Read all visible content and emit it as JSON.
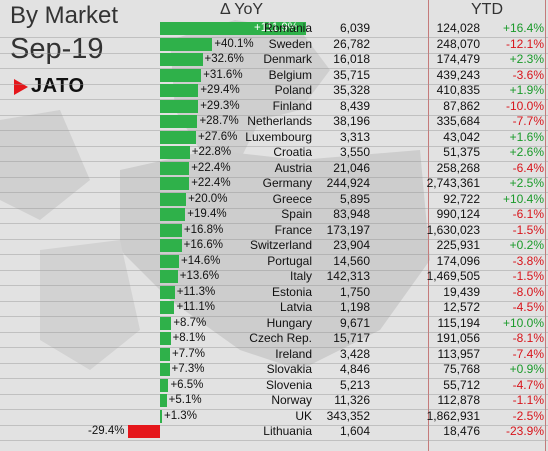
{
  "title": "By Market",
  "subtitle": "Sep-19",
  "logo_text": "JATO",
  "colors": {
    "positive_bar": "#2fb14a",
    "negative_bar": "#e5161b",
    "positive_text": "#1a9a2a",
    "negative_text": "#d8141b"
  },
  "chart_data": {
    "type": "bar",
    "orientation": "horizontal",
    "yoy_header": "Δ YoY",
    "ytd_header": "YTD",
    "categories": [
      "Romania",
      "Sweden",
      "Denmark",
      "Belgium",
      "Poland",
      "Finland",
      "Netherlands",
      "Luxembourg",
      "Croatia",
      "Austria",
      "Germany",
      "Greece",
      "Spain",
      "France",
      "Switzerland",
      "Portugal",
      "Italy",
      "Estonia",
      "Latvia",
      "Hungary",
      "Czech Rep.",
      "Ireland",
      "Slovakia",
      "Slovenia",
      "Norway",
      "UK",
      "Lithuania"
    ],
    "yoy": [
      111.9,
      40.1,
      32.6,
      31.6,
      29.4,
      29.3,
      28.7,
      27.6,
      22.8,
      22.4,
      22.4,
      20.0,
      19.4,
      16.8,
      16.6,
      14.6,
      13.6,
      11.3,
      11.1,
      8.7,
      8.1,
      7.7,
      7.3,
      6.5,
      5.1,
      1.3,
      -29.4
    ],
    "yoy_labels": [
      "+111.9%",
      "+40.1%",
      "+32.6%",
      "+31.6%",
      "+29.4%",
      "+29.3%",
      "+28.7%",
      "+27.6%",
      "+22.8%",
      "+22.4%",
      "+22.4%",
      "+20.0%",
      "+19.4%",
      "+16.8%",
      "+16.6%",
      "+14.6%",
      "+13.6%",
      "+11.3%",
      "+11.1%",
      "+8.7%",
      "+8.1%",
      "+7.7%",
      "+7.3%",
      "+6.5%",
      "+5.1%",
      "+1.3%",
      "-29.4%"
    ],
    "volume": [
      "6,039",
      "26,782",
      "16,018",
      "35,715",
      "35,328",
      "8,439",
      "38,196",
      "3,313",
      "3,550",
      "21,046",
      "244,924",
      "5,895",
      "83,948",
      "173,197",
      "23,904",
      "14,560",
      "142,313",
      "1,750",
      "1,198",
      "9,671",
      "15,717",
      "3,428",
      "4,846",
      "5,213",
      "11,326",
      "343,352",
      "1,604"
    ],
    "ytd_volume": [
      "124,028",
      "248,070",
      "174,479",
      "439,243",
      "410,835",
      "87,862",
      "335,684",
      "43,042",
      "51,375",
      "258,268",
      "2,743,361",
      "92,722",
      "990,124",
      "1,630,023",
      "225,931",
      "174,096",
      "1,469,505",
      "19,439",
      "12,572",
      "115,194",
      "191,056",
      "113,957",
      "75,768",
      "55,712",
      "112,878",
      "1,862,931",
      "18,476"
    ],
    "ytd_change": [
      "+16.4%",
      "-12.1%",
      "+2.3%",
      "-3.6%",
      "+1.9%",
      "-10.0%",
      "-7.7%",
      "+1.6%",
      "+2.6%",
      "-6.4%",
      "+2.5%",
      "+10.4%",
      "-6.1%",
      "-1.5%",
      "+0.2%",
      "-3.8%",
      "-1.5%",
      "-8.0%",
      "-4.5%",
      "+10.0%",
      "-8.1%",
      "-7.4%",
      "+0.9%",
      "-4.7%",
      "-1.1%",
      "-2.5%",
      "-23.9%"
    ]
  }
}
